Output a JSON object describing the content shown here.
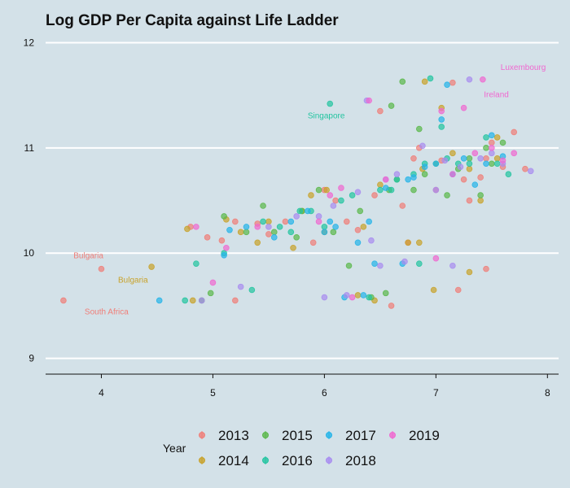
{
  "chart_data": {
    "type": "scatter",
    "title": "Log GDP Per Capita against Life Ladder",
    "xlabel": "",
    "ylabel": "",
    "xlim": [
      3.5,
      8.1
    ],
    "ylim": [
      8.85,
      12.05
    ],
    "xticks": [
      4,
      5,
      6,
      7,
      8
    ],
    "yticks": [
      9,
      10,
      11,
      12
    ],
    "grid": "horizontal major lines only",
    "legend": {
      "title": "Year",
      "placement": "bottom",
      "entries": [
        "2013",
        "2014",
        "2015",
        "2016",
        "2017",
        "2018",
        "2019"
      ]
    },
    "series": [
      {
        "name": "2013",
        "color": "#f07e78",
        "points": [
          [
            3.66,
            9.55
          ],
          [
            4.0,
            9.85
          ],
          [
            4.8,
            10.25
          ],
          [
            4.95,
            10.15
          ],
          [
            5.08,
            10.12
          ],
          [
            5.2,
            10.3
          ],
          [
            5.2,
            9.55
          ],
          [
            5.4,
            10.28
          ],
          [
            5.5,
            10.18
          ],
          [
            5.65,
            10.3
          ],
          [
            5.9,
            10.1
          ],
          [
            6.0,
            10.6
          ],
          [
            6.1,
            10.5
          ],
          [
            6.2,
            10.3
          ],
          [
            6.3,
            10.22
          ],
          [
            6.45,
            10.55
          ],
          [
            6.5,
            11.35
          ],
          [
            6.6,
            9.5
          ],
          [
            6.7,
            10.45
          ],
          [
            6.75,
            10.1
          ],
          [
            6.8,
            10.9
          ],
          [
            6.85,
            11.0
          ],
          [
            7.0,
            10.6
          ],
          [
            7.05,
            10.88
          ],
          [
            7.15,
            11.62
          ],
          [
            7.2,
            9.65
          ],
          [
            7.25,
            10.7
          ],
          [
            7.3,
            10.5
          ],
          [
            7.4,
            10.72
          ],
          [
            7.45,
            9.85
          ],
          [
            7.45,
            10.9
          ],
          [
            7.5,
            11.05
          ],
          [
            7.6,
            10.82
          ],
          [
            7.7,
            11.15
          ],
          [
            7.8,
            10.8
          ]
        ]
      },
      {
        "name": "2014",
        "color": "#c8a22a",
        "points": [
          [
            4.45,
            9.87
          ],
          [
            4.77,
            10.23
          ],
          [
            4.82,
            9.55
          ],
          [
            5.12,
            10.32
          ],
          [
            5.25,
            10.2
          ],
          [
            5.4,
            10.1
          ],
          [
            5.5,
            10.3
          ],
          [
            5.72,
            10.05
          ],
          [
            5.8,
            10.4
          ],
          [
            5.88,
            10.55
          ],
          [
            6.0,
            10.2
          ],
          [
            6.02,
            10.6
          ],
          [
            6.3,
            9.6
          ],
          [
            6.35,
            10.25
          ],
          [
            6.45,
            9.55
          ],
          [
            6.5,
            10.65
          ],
          [
            6.75,
            10.1
          ],
          [
            6.85,
            10.1
          ],
          [
            6.88,
            10.8
          ],
          [
            6.9,
            11.63
          ],
          [
            6.98,
            9.65
          ],
          [
            7.05,
            11.38
          ],
          [
            7.15,
            10.95
          ],
          [
            7.3,
            9.82
          ],
          [
            7.3,
            10.8
          ],
          [
            7.4,
            10.5
          ],
          [
            7.55,
            10.9
          ],
          [
            7.55,
            11.1
          ]
        ]
      },
      {
        "name": "2015",
        "color": "#5ab84a",
        "points": [
          [
            4.9,
            9.55
          ],
          [
            4.98,
            9.62
          ],
          [
            5.1,
            10.35
          ],
          [
            5.3,
            10.2
          ],
          [
            5.45,
            10.45
          ],
          [
            5.55,
            10.2
          ],
          [
            5.75,
            10.15
          ],
          [
            5.8,
            10.4
          ],
          [
            5.95,
            10.6
          ],
          [
            6.08,
            10.2
          ],
          [
            6.22,
            9.88
          ],
          [
            6.32,
            10.4
          ],
          [
            6.42,
            9.58
          ],
          [
            6.55,
            9.62
          ],
          [
            6.58,
            10.6
          ],
          [
            6.6,
            11.4
          ],
          [
            6.65,
            10.7
          ],
          [
            6.7,
            11.63
          ],
          [
            6.8,
            10.6
          ],
          [
            6.85,
            11.18
          ],
          [
            6.9,
            10.75
          ],
          [
            7.0,
            10.85
          ],
          [
            7.1,
            10.55
          ],
          [
            7.2,
            10.8
          ],
          [
            7.3,
            10.9
          ],
          [
            7.4,
            10.55
          ],
          [
            7.45,
            11.0
          ],
          [
            7.5,
            10.85
          ],
          [
            7.6,
            11.05
          ]
        ]
      },
      {
        "name": "2016",
        "color": "#22c4a0",
        "points": [
          [
            4.75,
            9.55
          ],
          [
            4.85,
            9.9
          ],
          [
            5.1,
            10.0
          ],
          [
            5.35,
            9.65
          ],
          [
            5.45,
            10.3
          ],
          [
            5.6,
            10.25
          ],
          [
            5.7,
            10.2
          ],
          [
            5.78,
            10.4
          ],
          [
            5.88,
            10.4
          ],
          [
            6.0,
            10.25
          ],
          [
            6.05,
            11.42
          ],
          [
            6.15,
            10.5
          ],
          [
            6.25,
            10.55
          ],
          [
            6.4,
            9.58
          ],
          [
            6.5,
            10.6
          ],
          [
            6.6,
            10.6
          ],
          [
            6.65,
            10.7
          ],
          [
            6.8,
            10.75
          ],
          [
            6.85,
            9.9
          ],
          [
            6.9,
            10.85
          ],
          [
            6.95,
            11.66
          ],
          [
            7.05,
            11.2
          ],
          [
            7.1,
            10.9
          ],
          [
            7.2,
            10.85
          ],
          [
            7.3,
            10.85
          ],
          [
            7.45,
            11.1
          ],
          [
            7.55,
            10.85
          ],
          [
            7.65,
            10.75
          ]
        ]
      },
      {
        "name": "2017",
        "color": "#24b4e8",
        "points": [
          [
            4.52,
            9.55
          ],
          [
            5.1,
            9.98
          ],
          [
            5.15,
            10.22
          ],
          [
            5.3,
            10.25
          ],
          [
            5.55,
            10.15
          ],
          [
            5.7,
            10.3
          ],
          [
            5.85,
            10.4
          ],
          [
            6.0,
            10.2
          ],
          [
            6.05,
            10.3
          ],
          [
            6.1,
            10.25
          ],
          [
            6.18,
            9.58
          ],
          [
            6.3,
            10.1
          ],
          [
            6.35,
            9.6
          ],
          [
            6.4,
            10.3
          ],
          [
            6.45,
            9.9
          ],
          [
            6.55,
            10.62
          ],
          [
            6.7,
            9.9
          ],
          [
            6.75,
            10.7
          ],
          [
            6.8,
            10.72
          ],
          [
            6.9,
            10.82
          ],
          [
            7.0,
            10.85
          ],
          [
            7.05,
            11.27
          ],
          [
            7.1,
            11.6
          ],
          [
            7.15,
            10.75
          ],
          [
            7.25,
            10.9
          ],
          [
            7.35,
            10.65
          ],
          [
            7.45,
            10.85
          ],
          [
            7.5,
            11.12
          ],
          [
            7.6,
            10.92
          ]
        ]
      },
      {
        "name": "2018",
        "color": "#a88cf0",
        "points": [
          [
            4.9,
            9.55
          ],
          [
            5.25,
            9.68
          ],
          [
            5.5,
            10.25
          ],
          [
            5.75,
            10.35
          ],
          [
            5.95,
            10.35
          ],
          [
            6.0,
            9.58
          ],
          [
            6.08,
            10.45
          ],
          [
            6.2,
            9.6
          ],
          [
            6.3,
            10.58
          ],
          [
            6.38,
            11.45
          ],
          [
            6.42,
            10.12
          ],
          [
            6.5,
            9.88
          ],
          [
            6.55,
            10.7
          ],
          [
            6.65,
            10.75
          ],
          [
            6.72,
            9.92
          ],
          [
            6.88,
            11.02
          ],
          [
            7.0,
            10.6
          ],
          [
            7.08,
            10.88
          ],
          [
            7.15,
            9.88
          ],
          [
            7.22,
            10.82
          ],
          [
            7.3,
            11.65
          ],
          [
            7.4,
            10.9
          ],
          [
            7.5,
            10.95
          ],
          [
            7.6,
            10.85
          ],
          [
            7.85,
            10.78
          ]
        ]
      },
      {
        "name": "2019",
        "color": "#f068d0",
        "points": [
          [
            4.85,
            10.25
          ],
          [
            5.0,
            9.72
          ],
          [
            5.12,
            10.05
          ],
          [
            5.4,
            10.25
          ],
          [
            5.95,
            10.3
          ],
          [
            6.05,
            10.55
          ],
          [
            6.15,
            10.62
          ],
          [
            6.25,
            9.58
          ],
          [
            6.4,
            11.45
          ],
          [
            6.55,
            10.7
          ],
          [
            7.0,
            9.95
          ],
          [
            7.05,
            11.35
          ],
          [
            7.15,
            10.75
          ],
          [
            7.25,
            11.38
          ],
          [
            7.35,
            10.95
          ],
          [
            7.42,
            11.65
          ],
          [
            7.5,
            11.0
          ],
          [
            7.6,
            10.88
          ],
          [
            7.7,
            10.95
          ]
        ]
      }
    ],
    "annotations": [
      {
        "text": "Luxembourg",
        "x": 7.58,
        "y": 11.74,
        "color": "#f068d0"
      },
      {
        "text": "Ireland",
        "x": 7.43,
        "y": 11.48,
        "color": "#f068d0"
      },
      {
        "text": "Singapore",
        "x": 5.85,
        "y": 11.28,
        "color": "#22c4a0"
      },
      {
        "text": "Bulgaria",
        "x": 3.75,
        "y": 9.95,
        "color": "#f07e78"
      },
      {
        "text": "Bulgaria",
        "x": 4.15,
        "y": 9.72,
        "color": "#c8a22a"
      },
      {
        "text": "South Africa",
        "x": 3.85,
        "y": 9.42,
        "color": "#f07e78"
      }
    ]
  }
}
